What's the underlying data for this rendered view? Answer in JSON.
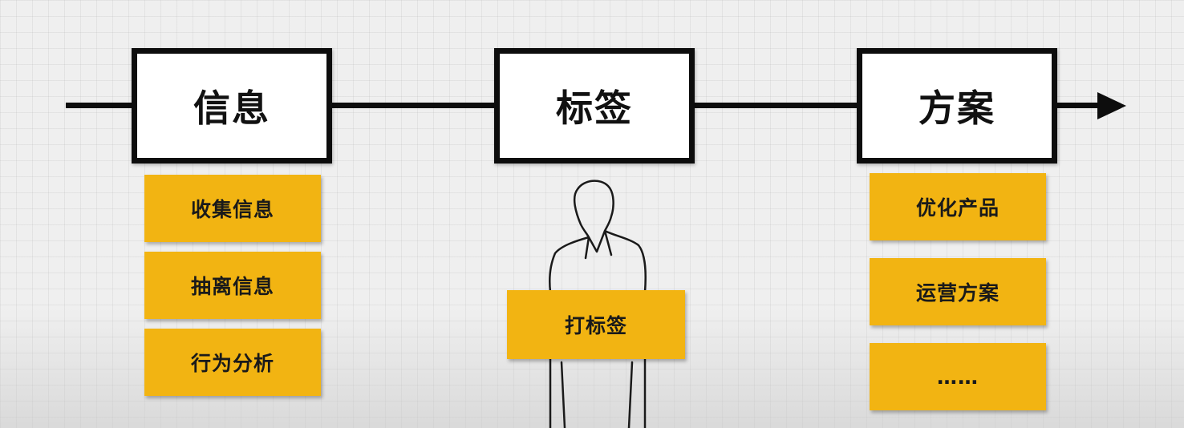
{
  "stages": [
    {
      "label": "信息",
      "items": [
        "收集信息",
        "抽离信息",
        "行为分析"
      ]
    },
    {
      "label": "标签",
      "items": [
        "打标签"
      ]
    },
    {
      "label": "方案",
      "items": [
        "优化产品",
        "运营方案",
        "……"
      ]
    }
  ],
  "colors": {
    "background": "#efefef",
    "line": "#0d0d0d",
    "card": "#f2b412",
    "box": "#ffffff"
  }
}
